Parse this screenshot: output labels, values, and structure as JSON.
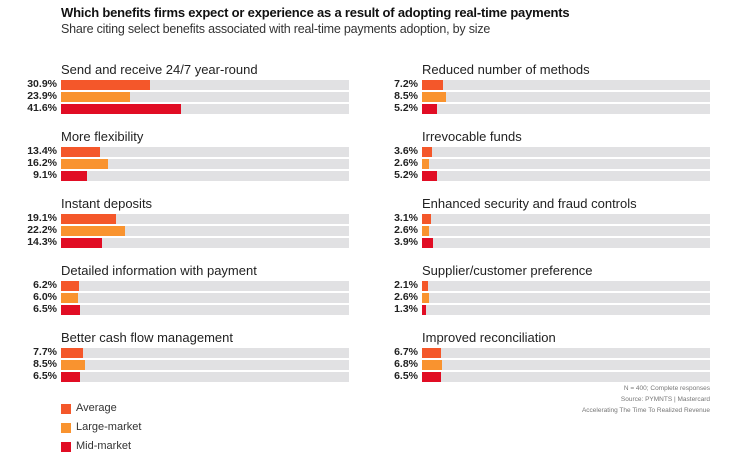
{
  "chart_data": {
    "type": "bar",
    "orientation": "horizontal",
    "title": "Which benefits firms expect or experience as a result of adopting real-time payments",
    "subtitle": "Share citing select benefits associated with real-time payments adoption, by size",
    "xlim": [
      0,
      100
    ],
    "unit": "%",
    "series_names": [
      "Average",
      "Large-market",
      "Mid-market"
    ],
    "colors": {
      "Average": "#f4572a",
      "Large-market": "#f9932f",
      "Mid-market": "#e10d24",
      "track": "#e1e1e3"
    },
    "groups": [
      {
        "label": "Send and receive 24/7 year-round",
        "values": [
          30.9,
          23.9,
          41.6
        ],
        "value_labels": [
          "30.9%",
          "23.9%",
          "41.6%"
        ]
      },
      {
        "label": "More flexibility",
        "values": [
          13.4,
          16.2,
          9.1
        ],
        "value_labels": [
          "13.4%",
          "16.2%",
          "9.1%"
        ]
      },
      {
        "label": "Instant deposits",
        "values": [
          19.1,
          22.2,
          14.3
        ],
        "value_labels": [
          "19.1%",
          "22.2%",
          "14.3%"
        ]
      },
      {
        "label": "Detailed information with payment",
        "values": [
          6.2,
          6.0,
          6.5
        ],
        "value_labels": [
          "6.2%",
          "6.0%",
          "6.5%"
        ]
      },
      {
        "label": "Better cash flow management",
        "values": [
          7.7,
          8.5,
          6.5
        ],
        "value_labels": [
          "7.7%",
          "8.5%",
          "6.5%"
        ]
      },
      {
        "label": "Reduced number of methods",
        "values": [
          7.2,
          8.5,
          5.2
        ],
        "value_labels": [
          "7.2%",
          "8.5%",
          "5.2%"
        ]
      },
      {
        "label": "Irrevocable funds",
        "values": [
          3.6,
          2.6,
          5.2
        ],
        "value_labels": [
          "3.6%",
          "2.6%",
          "5.2%"
        ]
      },
      {
        "label": "Enhanced security and fraud controls",
        "values": [
          3.1,
          2.6,
          3.9
        ],
        "value_labels": [
          "3.1%",
          "2.6%",
          "3.9%"
        ]
      },
      {
        "label": "Supplier/customer preference",
        "values": [
          2.1,
          2.6,
          1.3
        ],
        "value_labels": [
          "2.1%",
          "2.6%",
          "1.3%"
        ]
      },
      {
        "label": "Improved reconciliation",
        "values": [
          6.7,
          6.8,
          6.5
        ],
        "value_labels": [
          "6.7%",
          "6.8%",
          "6.5%"
        ]
      }
    ],
    "legend": {
      "placement": "bottom-left",
      "entries": [
        "Average",
        "Large-market",
        "Mid-market"
      ]
    },
    "notes": [
      "N = 400; Complete responses",
      "Source: PYMNTS | Mastercard",
      "Accelerating The Time To Realized Revenue"
    ]
  }
}
